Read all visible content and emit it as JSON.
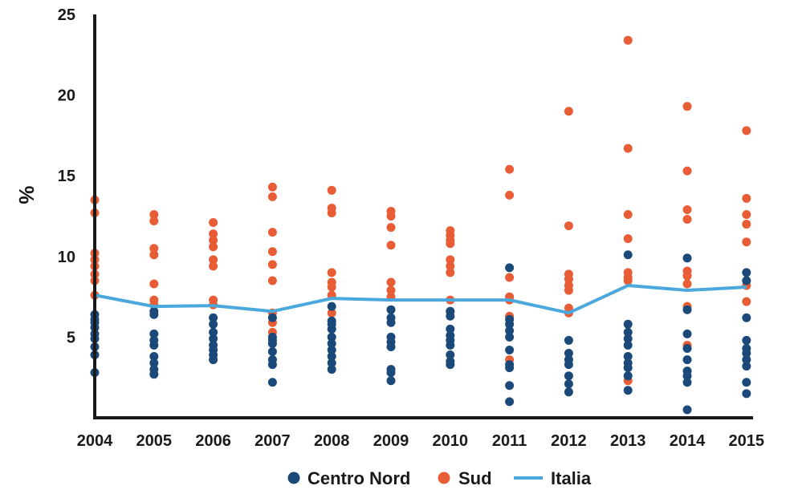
{
  "chart_data": {
    "type": "scatter",
    "title": "",
    "xlabel": "",
    "ylabel": "%",
    "categories": [
      "2004",
      "2005",
      "2006",
      "2007",
      "2008",
      "2009",
      "2010",
      "2011",
      "2012",
      "2013",
      "2014",
      "2015"
    ],
    "ylim": [
      0,
      25
    ],
    "yticks": [
      5,
      10,
      15,
      20,
      25
    ],
    "grid": false,
    "legend_position": "bottom",
    "colors": {
      "centro_nord": "#1b4a7a",
      "sud": "#e85d35",
      "italia": "#4aa8dc",
      "axis": "#1a1a1a"
    },
    "series": [
      {
        "name": "Centro Nord",
        "kind": "scatter",
        "points": [
          [
            6.4,
            6.1,
            5.9,
            5.6,
            5.2,
            4.9,
            4.4,
            3.9,
            2.8
          ],
          [
            6.6,
            6.4,
            5.2,
            4.8,
            4.5,
            3.8,
            3.4,
            3.0,
            2.7
          ],
          [
            6.2,
            5.8,
            5.3,
            4.9,
            4.5,
            4.2,
            3.9,
            3.6
          ],
          [
            6.2,
            5.0,
            4.8,
            4.6,
            4.1,
            3.6,
            3.3,
            2.2
          ],
          [
            6.9,
            6.0,
            5.8,
            5.5,
            5.0,
            4.6,
            4.2,
            3.8,
            3.4,
            3.0
          ],
          [
            6.7,
            6.2,
            5.9,
            5.0,
            4.7,
            4.4,
            3.0,
            2.8,
            2.3
          ],
          [
            6.6,
            6.3,
            5.5,
            5.1,
            4.8,
            4.5,
            3.9,
            3.5,
            3.3
          ],
          [
            9.3,
            6.1,
            5.8,
            5.4,
            5.0,
            4.2,
            3.3,
            3.1,
            2.0,
            1.0
          ],
          [
            4.8,
            4.0,
            3.6,
            3.3,
            2.6,
            2.1,
            1.6
          ],
          [
            10.1,
            5.8,
            5.3,
            4.9,
            4.5,
            3.8,
            3.4,
            3.1,
            2.6,
            1.7
          ],
          [
            9.9,
            6.7,
            5.2,
            4.3,
            3.6,
            2.9,
            2.6,
            2.2,
            0.5
          ],
          [
            9.0,
            8.5,
            6.2,
            4.8,
            4.3,
            4.0,
            3.6,
            3.2,
            2.2,
            1.5
          ]
        ]
      },
      {
        "name": "Sud",
        "kind": "scatter",
        "points": [
          [
            13.5,
            12.7,
            10.2,
            9.8,
            9.4,
            8.9,
            8.5,
            7.6
          ],
          [
            12.6,
            12.2,
            10.5,
            10.1,
            8.3,
            7.3,
            7.0
          ],
          [
            12.1,
            11.4,
            11.0,
            10.6,
            9.8,
            9.4,
            7.3,
            7.0
          ],
          [
            14.3,
            13.7,
            11.5,
            10.3,
            9.5,
            8.5,
            6.5,
            5.9,
            5.3
          ],
          [
            14.1,
            13.0,
            12.7,
            9.0,
            8.4,
            8.1,
            7.6,
            6.5
          ],
          [
            12.8,
            12.5,
            11.8,
            10.7,
            8.4,
            7.9,
            7.5
          ],
          [
            11.6,
            11.3,
            11.0,
            10.8,
            9.8,
            9.4,
            9.0,
            7.3,
            6.6
          ],
          [
            15.4,
            13.8,
            8.7,
            7.5,
            7.3,
            6.3,
            3.6
          ],
          [
            19.0,
            11.9,
            8.9,
            8.6,
            8.2,
            7.9,
            6.8,
            6.5
          ],
          [
            23.4,
            16.7,
            12.6,
            11.1,
            9.0,
            8.7,
            8.5,
            2.3
          ],
          [
            19.3,
            15.3,
            12.9,
            12.3,
            9.1,
            8.8,
            8.3,
            6.9,
            4.5
          ],
          [
            17.8,
            13.6,
            12.6,
            12.0,
            10.9,
            8.2,
            7.2
          ]
        ]
      },
      {
        "name": "Italia",
        "kind": "line",
        "values": [
          7.6,
          6.9,
          6.95,
          6.6,
          7.4,
          7.3,
          7.3,
          7.3,
          6.5,
          8.2,
          7.9,
          8.1
        ]
      }
    ],
    "legend": [
      {
        "label": "Centro Nord",
        "marker": "dot",
        "color_key": "centro_nord"
      },
      {
        "label": "Sud",
        "marker": "dot",
        "color_key": "sud"
      },
      {
        "label": "Italia",
        "marker": "line",
        "color_key": "italia"
      }
    ]
  }
}
